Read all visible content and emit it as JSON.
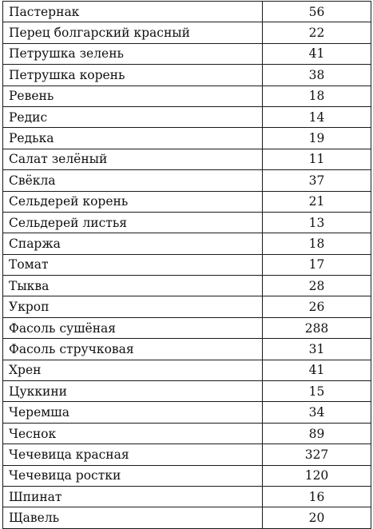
{
  "table": {
    "rows": [
      {
        "name": "Пастернак",
        "value": "56"
      },
      {
        "name": "Перец болгарский красный",
        "value": "22"
      },
      {
        "name": "Петрушка зелень",
        "value": "41"
      },
      {
        "name": "Петрушка корень",
        "value": "38"
      },
      {
        "name": "Ревень",
        "value": "18"
      },
      {
        "name": "Редис",
        "value": "14"
      },
      {
        "name": "Редька",
        "value": "19"
      },
      {
        "name": "Салат зелёный",
        "value": "11"
      },
      {
        "name": "Свёкла",
        "value": "37"
      },
      {
        "name": "Сельдерей корень",
        "value": "21"
      },
      {
        "name": "Сельдерей листья",
        "value": "13"
      },
      {
        "name": "Спаржа",
        "value": "18"
      },
      {
        "name": "Томат",
        "value": "17"
      },
      {
        "name": "Тыква",
        "value": "28"
      },
      {
        "name": "Укроп",
        "value": "26"
      },
      {
        "name": "Фасоль сушёная",
        "value": "288"
      },
      {
        "name": "Фасоль стручковая",
        "value": "31"
      },
      {
        "name": "Хрен",
        "value": "41"
      },
      {
        "name": "Цуккини",
        "value": "15"
      },
      {
        "name": "Черемша",
        "value": "34"
      },
      {
        "name": "Чеснок",
        "value": "89"
      },
      {
        "name": "Чечевица красная",
        "value": "327"
      },
      {
        "name": "Чечевица ростки",
        "value": "120"
      },
      {
        "name": "Шпинат",
        "value": "16"
      },
      {
        "name": "Щавель",
        "value": "20"
      }
    ]
  }
}
